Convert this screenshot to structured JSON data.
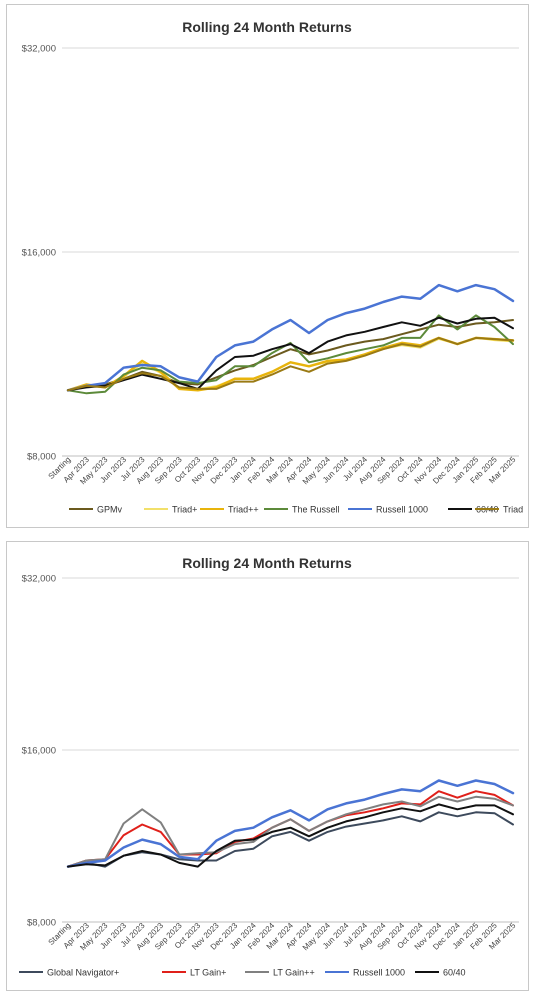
{
  "chart_data": [
    {
      "type": "line",
      "title": "Rolling 24 Month Returns",
      "yscale": "log",
      "ylim": [
        8000,
        32000
      ],
      "yticks": [
        "$32,000",
        "$16,000",
        "$8,000"
      ],
      "ytick_values": [
        32000,
        16000,
        8000
      ],
      "grid": true,
      "legend_position": "bottom",
      "x": [
        "Starting",
        "Apr 2023",
        "May 2023",
        "Jun 2023",
        "Jul 2023",
        "Aug 2023",
        "Sep 2023",
        "Oct 2023",
        "Nov 2023",
        "Dec 2023",
        "Jan 2024",
        "Feb 2024",
        "Mar 2024",
        "Apr 2024",
        "May 2024",
        "Jun 2024",
        "Jul 2024",
        "Aug 2024",
        "Sep 2024",
        "Oct 2024",
        "Nov 2024",
        "Dec 2024",
        "Jan 2025",
        "Feb 2025",
        "Mar 2025"
      ],
      "series": [
        {
          "name": "GPMv",
          "color": "#6b5a1e",
          "width": 2,
          "values": [
            10000,
            10150,
            10200,
            10400,
            10650,
            10500,
            10250,
            10200,
            10450,
            10700,
            10900,
            11200,
            11500,
            11300,
            11450,
            11650,
            11800,
            11900,
            12100,
            12300,
            12500,
            12400,
            12550,
            12600,
            12700
          ]
        },
        {
          "name": "Triad+",
          "color": "#f2e06a",
          "width": 1.5,
          "values": [
            10000,
            10180,
            10100,
            10450,
            10950,
            10600,
            10050,
            10050,
            10150,
            10400,
            10400,
            10650,
            11000,
            10850,
            11000,
            11100,
            11300,
            11500,
            11650,
            11550,
            11900,
            11700,
            11950,
            11850,
            11800
          ]
        },
        {
          "name": "Triad++",
          "color": "#e8b40c",
          "width": 2.5,
          "values": [
            10000,
            10200,
            10100,
            10500,
            11050,
            10650,
            10050,
            10000,
            10100,
            10400,
            10400,
            10650,
            11000,
            10850,
            11050,
            11100,
            11300,
            11550,
            11750,
            11650,
            11950,
            11700,
            11950,
            11900,
            11850
          ]
        },
        {
          "name": "The Russell",
          "color": "#5c8a3a",
          "width": 2,
          "values": [
            10000,
            9900,
            9950,
            10550,
            10800,
            10700,
            10300,
            10250,
            10350,
            10850,
            10850,
            11350,
            11750,
            11000,
            11150,
            11350,
            11500,
            11650,
            11950,
            11950,
            12900,
            12300,
            12900,
            12400,
            11700
          ]
        },
        {
          "name": "Russell 1000",
          "color": "#4a74d4",
          "width": 2.5,
          "values": [
            10000,
            10150,
            10250,
            10800,
            10900,
            10850,
            10450,
            10300,
            11200,
            11650,
            11800,
            12300,
            12700,
            12150,
            12700,
            13000,
            13200,
            13500,
            13750,
            13650,
            14300,
            14000,
            14300,
            14100,
            13550
          ]
        },
        {
          "name": "60/40",
          "color": "#111111",
          "width": 2,
          "values": [
            10000,
            10100,
            10150,
            10350,
            10550,
            10400,
            10250,
            10050,
            10700,
            11200,
            11250,
            11500,
            11700,
            11350,
            11800,
            12050,
            12200,
            12400,
            12600,
            12450,
            12800,
            12550,
            12750,
            12800,
            12350
          ]
        },
        {
          "name": "Triad",
          "color": "#9a7a14",
          "width": 2,
          "values": [
            10000,
            10150,
            10100,
            10400,
            10600,
            10500,
            10100,
            10050,
            10050,
            10300,
            10300,
            10550,
            10850,
            10650,
            10950,
            11050,
            11250,
            11500,
            11700,
            11600,
            11950,
            11700,
            11950,
            11900,
            11850
          ]
        }
      ]
    },
    {
      "type": "line",
      "title": "Rolling 24 Month Returns",
      "yscale": "log",
      "ylim": [
        8000,
        32000
      ],
      "yticks": [
        "$32,000",
        "$16,000",
        "$8,000"
      ],
      "ytick_values": [
        32000,
        16000,
        8000
      ],
      "grid": true,
      "legend_position": "bottom",
      "x": [
        "Starting",
        "Apr 2023",
        "May 2023",
        "Jun 2023",
        "Jul 2023",
        "Aug 2023",
        "Sep 2023",
        "Oct 2023",
        "Nov 2023",
        "Dec 2023",
        "Jan 2024",
        "Feb 2024",
        "Mar 2024",
        "Apr 2024",
        "May 2024",
        "Jun 2024",
        "Jul 2024",
        "Aug 2024",
        "Sep 2024",
        "Oct 2024",
        "Nov 2024",
        "Dec 2024",
        "Jan 2025",
        "Feb 2025",
        "Mar 2025"
      ],
      "series": [
        {
          "name": "Global Navigator+",
          "color": "#3d4a5c",
          "width": 2,
          "values": [
            10000,
            10150,
            10000,
            10450,
            10600,
            10500,
            10300,
            10250,
            10250,
            10650,
            10750,
            11300,
            11500,
            11100,
            11500,
            11750,
            11900,
            12050,
            12250,
            12000,
            12450,
            12250,
            12450,
            12400,
            11850
          ]
        },
        {
          "name": "LT Gain+",
          "color": "#e0201a",
          "width": 2,
          "values": [
            10000,
            10250,
            10300,
            11350,
            11850,
            11500,
            10500,
            10500,
            10550,
            11050,
            11200,
            11700,
            12100,
            11550,
            12000,
            12300,
            12450,
            12650,
            12900,
            12850,
            13550,
            13200,
            13550,
            13350,
            12800
          ]
        },
        {
          "name": "LT Gain++",
          "color": "#808080",
          "width": 2,
          "values": [
            10000,
            10250,
            10300,
            11900,
            12600,
            11950,
            10500,
            10550,
            10600,
            10950,
            11050,
            11700,
            12100,
            11550,
            12000,
            12350,
            12600,
            12850,
            13000,
            12750,
            13250,
            13000,
            13250,
            13150,
            12800
          ]
        },
        {
          "name": "Russell 1000",
          "color": "#4a74d4",
          "width": 2.5,
          "values": [
            10000,
            10150,
            10250,
            10800,
            11150,
            10950,
            10400,
            10300,
            11100,
            11550,
            11700,
            12200,
            12550,
            12050,
            12600,
            12900,
            13100,
            13400,
            13650,
            13550,
            14150,
            13850,
            14150,
            13950,
            13450
          ]
        },
        {
          "name": "60/40",
          "color": "#111111",
          "width": 2,
          "values": [
            10000,
            10100,
            10050,
            10450,
            10650,
            10500,
            10150,
            10000,
            10650,
            11100,
            11150,
            11500,
            11700,
            11300,
            11700,
            12000,
            12200,
            12450,
            12650,
            12500,
            12850,
            12600,
            12800,
            12800,
            12350
          ]
        }
      ]
    }
  ]
}
